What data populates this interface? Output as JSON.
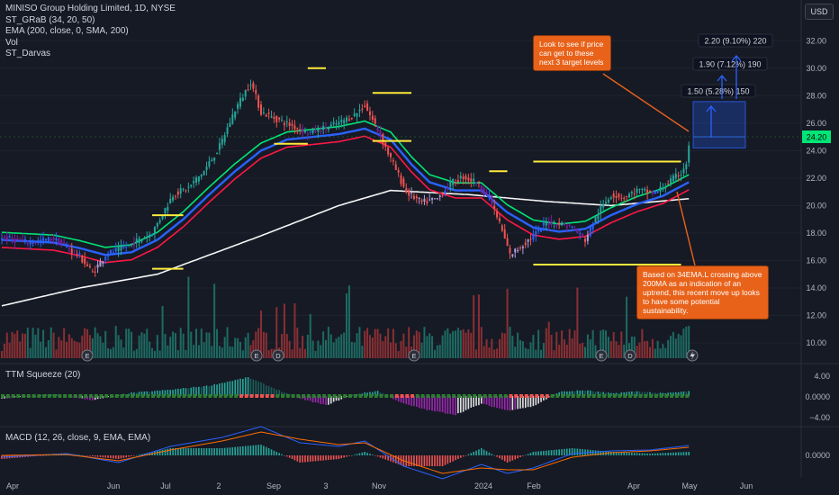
{
  "header": {
    "symbol_line": "MINISO Group Holding Limited, 1D, NYSE",
    "indicators": [
      "ST_GRaB (34, 20, 50)",
      "EMA (200, close, 0, SMA, 200)",
      "Vol",
      "ST_Darvas"
    ],
    "currency_button": "USD"
  },
  "annotations": {
    "top_note": "Look to see if price can get to these next 3 target levels",
    "bottom_note": "Based on 34EMA.L crossing above 200MA as an indication  of an uptrend, this recent move up looks to have some potential sustainability.",
    "targets": [
      "1.50 (5.28%) 150",
      "1.90 (7.12%) 190",
      "2.20 (9.10%) 220"
    ]
  },
  "colors": {
    "background": "#161a25",
    "up": "#26a69a",
    "down": "#ef5350",
    "ema_green": "#00e676",
    "ema_blue": "#2962ff",
    "ema_red": "#ff1744",
    "sma200": "#f5f5f5",
    "darvas": "#ffeb3b",
    "accent_note": "#e8621a",
    "last_price": "#00e676"
  },
  "chart_data": [
    {
      "type": "candlestick",
      "title": "MINISO Group Holding Limited, 1D, NYSE",
      "ylim": [
        8.8,
        33
      ],
      "price_axis_ticks": [
        "32.00",
        "30.00",
        "28.00",
        "26.00",
        "24.00",
        "22.00",
        "20.00",
        "18.00",
        "16.00",
        "14.00",
        "12.00",
        "10.00"
      ],
      "last_price_label": "24.20",
      "x_tick_labels": [
        "Apr",
        "Jun",
        "Jul",
        "2",
        "Sep",
        "3",
        "Nov",
        "2024",
        "Feb",
        "Apr",
        "May",
        "Jun"
      ],
      "close_path": [
        [
          0,
          17.7
        ],
        [
          10,
          17.3
        ],
        [
          20,
          17.6
        ],
        [
          30,
          16.3
        ],
        [
          35,
          15.1
        ],
        [
          40,
          16.4
        ],
        [
          50,
          17.2
        ],
        [
          58,
          18.0
        ],
        [
          66,
          20.8
        ],
        [
          72,
          21.3
        ],
        [
          78,
          22.5
        ],
        [
          84,
          24.3
        ],
        [
          90,
          27.0
        ],
        [
          96,
          29.0
        ],
        [
          100,
          26.8
        ],
        [
          106,
          26.3
        ],
        [
          112,
          25.8
        ],
        [
          118,
          25.3
        ],
        [
          124,
          25.6
        ],
        [
          130,
          26.0
        ],
        [
          136,
          26.6
        ],
        [
          140,
          27.3
        ],
        [
          145,
          25.5
        ],
        [
          150,
          23.4
        ],
        [
          156,
          21.0
        ],
        [
          162,
          20.2
        ],
        [
          168,
          20.5
        ],
        [
          173,
          21.6
        ],
        [
          178,
          22.1
        ],
        [
          183,
          21.7
        ],
        [
          188,
          20.6
        ],
        [
          192,
          18.7
        ],
        [
          196,
          16.4
        ],
        [
          200,
          17.0
        ],
        [
          205,
          17.8
        ],
        [
          210,
          18.8
        ],
        [
          215,
          18.7
        ],
        [
          220,
          18.4
        ],
        [
          225,
          17.5
        ],
        [
          230,
          19.5
        ],
        [
          235,
          20.8
        ],
        [
          240,
          20.6
        ],
        [
          245,
          21.1
        ],
        [
          252,
          20.9
        ],
        [
          258,
          21.8
        ],
        [
          262,
          22.4
        ],
        [
          264,
          23.1
        ],
        [
          265,
          24.2
        ]
      ],
      "ema200_path": [
        [
          0,
          12.7
        ],
        [
          30,
          14.0
        ],
        [
          60,
          15.0
        ],
        [
          100,
          17.8
        ],
        [
          130,
          20.0
        ],
        [
          150,
          21.1
        ],
        [
          180,
          20.8
        ],
        [
          210,
          20.3
        ],
        [
          235,
          20.0
        ],
        [
          265,
          20.5
        ]
      ],
      "ema_ribbon_path": [
        [
          0,
          17.5
        ],
        [
          20,
          17.3
        ],
        [
          30,
          16.9
        ],
        [
          40,
          16.4
        ],
        [
          50,
          16.6
        ],
        [
          60,
          17.5
        ],
        [
          70,
          19.0
        ],
        [
          80,
          20.8
        ],
        [
          90,
          22.5
        ],
        [
          100,
          24.0
        ],
        [
          110,
          24.8
        ],
        [
          120,
          25.0
        ],
        [
          130,
          25.2
        ],
        [
          140,
          25.6
        ],
        [
          150,
          24.8
        ],
        [
          158,
          23.0
        ],
        [
          165,
          21.7
        ],
        [
          175,
          21.1
        ],
        [
          185,
          21.1
        ],
        [
          195,
          19.5
        ],
        [
          205,
          18.4
        ],
        [
          215,
          18.1
        ],
        [
          225,
          18.3
        ],
        [
          235,
          19.3
        ],
        [
          245,
          20.1
        ],
        [
          255,
          20.7
        ],
        [
          265,
          21.7
        ]
      ],
      "darvas_boxes": [
        {
          "from": 58,
          "to": 70,
          "level": 19.3
        },
        {
          "from": 58,
          "to": 70,
          "level": 15.4
        },
        {
          "from": 118,
          "to": 125,
          "level": 30.0
        },
        {
          "from": 105,
          "to": 118,
          "level": 24.5
        },
        {
          "from": 143,
          "to": 158,
          "level": 28.2
        },
        {
          "from": 143,
          "to": 158,
          "level": 24.7
        },
        {
          "from": 188,
          "to": 195,
          "level": 22.5
        },
        {
          "from": 205,
          "to": 262,
          "level": 23.2
        },
        {
          "from": 205,
          "to": 262,
          "level": 15.7
        }
      ],
      "targets": [
        {
          "level": 25.4,
          "label": "1.50 (5.28%) 150"
        },
        {
          "level": 25.9,
          "label": "1.90 (7.12%) 190"
        },
        {
          "level": 26.4,
          "label": "2.20 (9.10%) 220"
        }
      ]
    },
    {
      "type": "bar",
      "title": "TTM Squeeze (20)",
      "ylim": [
        -4.5,
        4.5
      ],
      "axis_ticks": [
        "4.00",
        "0.0000",
        "−4.00"
      ],
      "momentum_path": [
        [
          0,
          -0.5
        ],
        [
          20,
          0.3
        ],
        [
          35,
          -0.8
        ],
        [
          50,
          0.6
        ],
        [
          65,
          1.2
        ],
        [
          80,
          2.0
        ],
        [
          95,
          3.6
        ],
        [
          105,
          1.5
        ],
        [
          115,
          -0.5
        ],
        [
          125,
          -1.8
        ],
        [
          135,
          0.2
        ],
        [
          145,
          1.0
        ],
        [
          155,
          -1.5
        ],
        [
          165,
          -2.8
        ],
        [
          175,
          -3.6
        ],
        [
          185,
          -1.5
        ],
        [
          195,
          -2.8
        ],
        [
          205,
          -2.0
        ],
        [
          215,
          0.8
        ],
        [
          225,
          1.1
        ],
        [
          235,
          0.5
        ],
        [
          245,
          0.9
        ],
        [
          255,
          0.5
        ],
        [
          265,
          0.9
        ]
      ]
    },
    {
      "type": "line",
      "title": "MACD (12, 26, close, 9, EMA, EMA)",
      "axis_ticks": [
        "0.0000"
      ],
      "macd_path": [
        [
          0,
          -0.1
        ],
        [
          25,
          0.1
        ],
        [
          45,
          -0.4
        ],
        [
          65,
          0.5
        ],
        [
          85,
          1.0
        ],
        [
          100,
          1.6
        ],
        [
          115,
          0.7
        ],
        [
          130,
          0.5
        ],
        [
          140,
          0.8
        ],
        [
          155,
          -0.6
        ],
        [
          170,
          -1.3
        ],
        [
          185,
          -0.5
        ],
        [
          195,
          -1.0
        ],
        [
          205,
          -0.7
        ],
        [
          220,
          0.1
        ],
        [
          235,
          0.25
        ],
        [
          250,
          0.3
        ],
        [
          265,
          0.55
        ]
      ],
      "signal_path": [
        [
          0,
          0.0
        ],
        [
          25,
          0.05
        ],
        [
          45,
          -0.3
        ],
        [
          65,
          0.3
        ],
        [
          85,
          0.8
        ],
        [
          100,
          1.3
        ],
        [
          115,
          0.9
        ],
        [
          130,
          0.6
        ],
        [
          140,
          0.7
        ],
        [
          155,
          -0.3
        ],
        [
          170,
          -1.0
        ],
        [
          185,
          -0.7
        ],
        [
          195,
          -0.8
        ],
        [
          205,
          -0.8
        ],
        [
          220,
          -0.1
        ],
        [
          235,
          0.15
        ],
        [
          250,
          0.25
        ],
        [
          265,
          0.45
        ]
      ]
    }
  ]
}
